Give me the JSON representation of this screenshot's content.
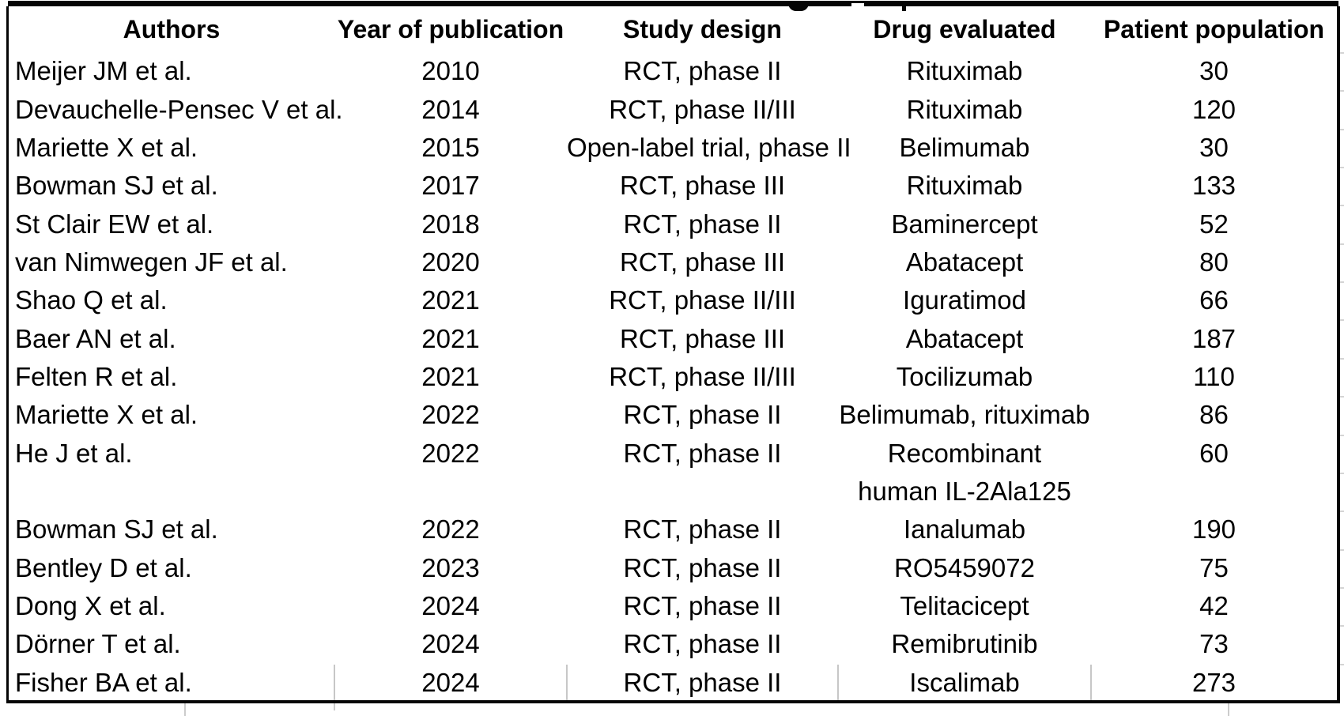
{
  "document": {
    "type": "clinical-trials-summary-table",
    "partial_title_row": "title text cut off at top edge; only letter descenders visible",
    "colors": {
      "background": "#ffffff",
      "text": "#000000",
      "frame_border": "#050505",
      "faint_gridline": "#c7c7c7"
    }
  },
  "table": {
    "columns": [
      "Authors",
      "Year of publication",
      "Study design",
      "Drug evaluated",
      "Patient population"
    ],
    "rows": [
      {
        "authors": "Meijer JM et al.",
        "year": "2010",
        "design": "RCT, phase II",
        "drug": "Rituximab",
        "population": "30"
      },
      {
        "authors": "Devauchelle-Pensec V et al.",
        "year": "2014",
        "design": "RCT, phase II/III",
        "drug": "Rituximab",
        "population": "120"
      },
      {
        "authors": "Mariette X et al.",
        "year": "2015",
        "design": "Open-label trial, phase II",
        "drug": "Belimumab",
        "population": "30"
      },
      {
        "authors": "Bowman SJ et al.",
        "year": "2017",
        "design": "RCT, phase III",
        "drug": "Rituximab",
        "population": "133"
      },
      {
        "authors": "St Clair EW et al.",
        "year": "2018",
        "design": "RCT, phase II",
        "drug": "Baminercept",
        "population": "52"
      },
      {
        "authors": "van Nimwegen JF et al.",
        "year": "2020",
        "design": "RCT, phase III",
        "drug": "Abatacept",
        "population": "80"
      },
      {
        "authors": "Shao Q et al.",
        "year": "2021",
        "design": "RCT, phase II/III",
        "drug": "Iguratimod",
        "population": "66"
      },
      {
        "authors": "Baer AN et al.",
        "year": "2021",
        "design": "RCT, phase III",
        "drug": "Abatacept",
        "population": "187"
      },
      {
        "authors": "Felten R et al.",
        "year": "2021",
        "design": "RCT, phase II/III",
        "drug": "Tocilizumab",
        "population": "110"
      },
      {
        "authors": "Mariette X et al.",
        "year": "2022",
        "design": "RCT, phase II",
        "drug": "Belimumab, rituximab",
        "population": "86"
      },
      {
        "authors": "He J et al.",
        "year": "2022",
        "design": "RCT, phase II",
        "drug": "Recombinant",
        "population": "60"
      },
      {
        "authors": "",
        "year": "",
        "design": "",
        "drug": "human IL-2Ala125",
        "population": "",
        "continuation": true
      },
      {
        "authors": "Bowman SJ et al.",
        "year": "2022",
        "design": "RCT, phase II",
        "drug": "Ianalumab",
        "population": "190"
      },
      {
        "authors": "Bentley D et al.",
        "year": "2023",
        "design": "RCT, phase II",
        "drug": "RO5459072",
        "population": "75"
      },
      {
        "authors": "Dong X et al.",
        "year": "2024",
        "design": "RCT, phase II",
        "drug": "Telitacicept",
        "population": "42"
      },
      {
        "authors": "Dörner T et al.",
        "year": "2024",
        "design": "RCT, phase II",
        "drug": "Remibrutinib",
        "population": "73"
      },
      {
        "authors": "Fisher BA et al.",
        "year": "2024",
        "design": "RCT, phase II",
        "drug": "Iscalimab",
        "population": "273"
      }
    ]
  },
  "chart_data": {
    "type": "table",
    "title": "",
    "categories": [
      "Authors",
      "Year of publication",
      "Study design",
      "Drug evaluated",
      "Patient population"
    ],
    "values_note": "see table.rows"
  }
}
